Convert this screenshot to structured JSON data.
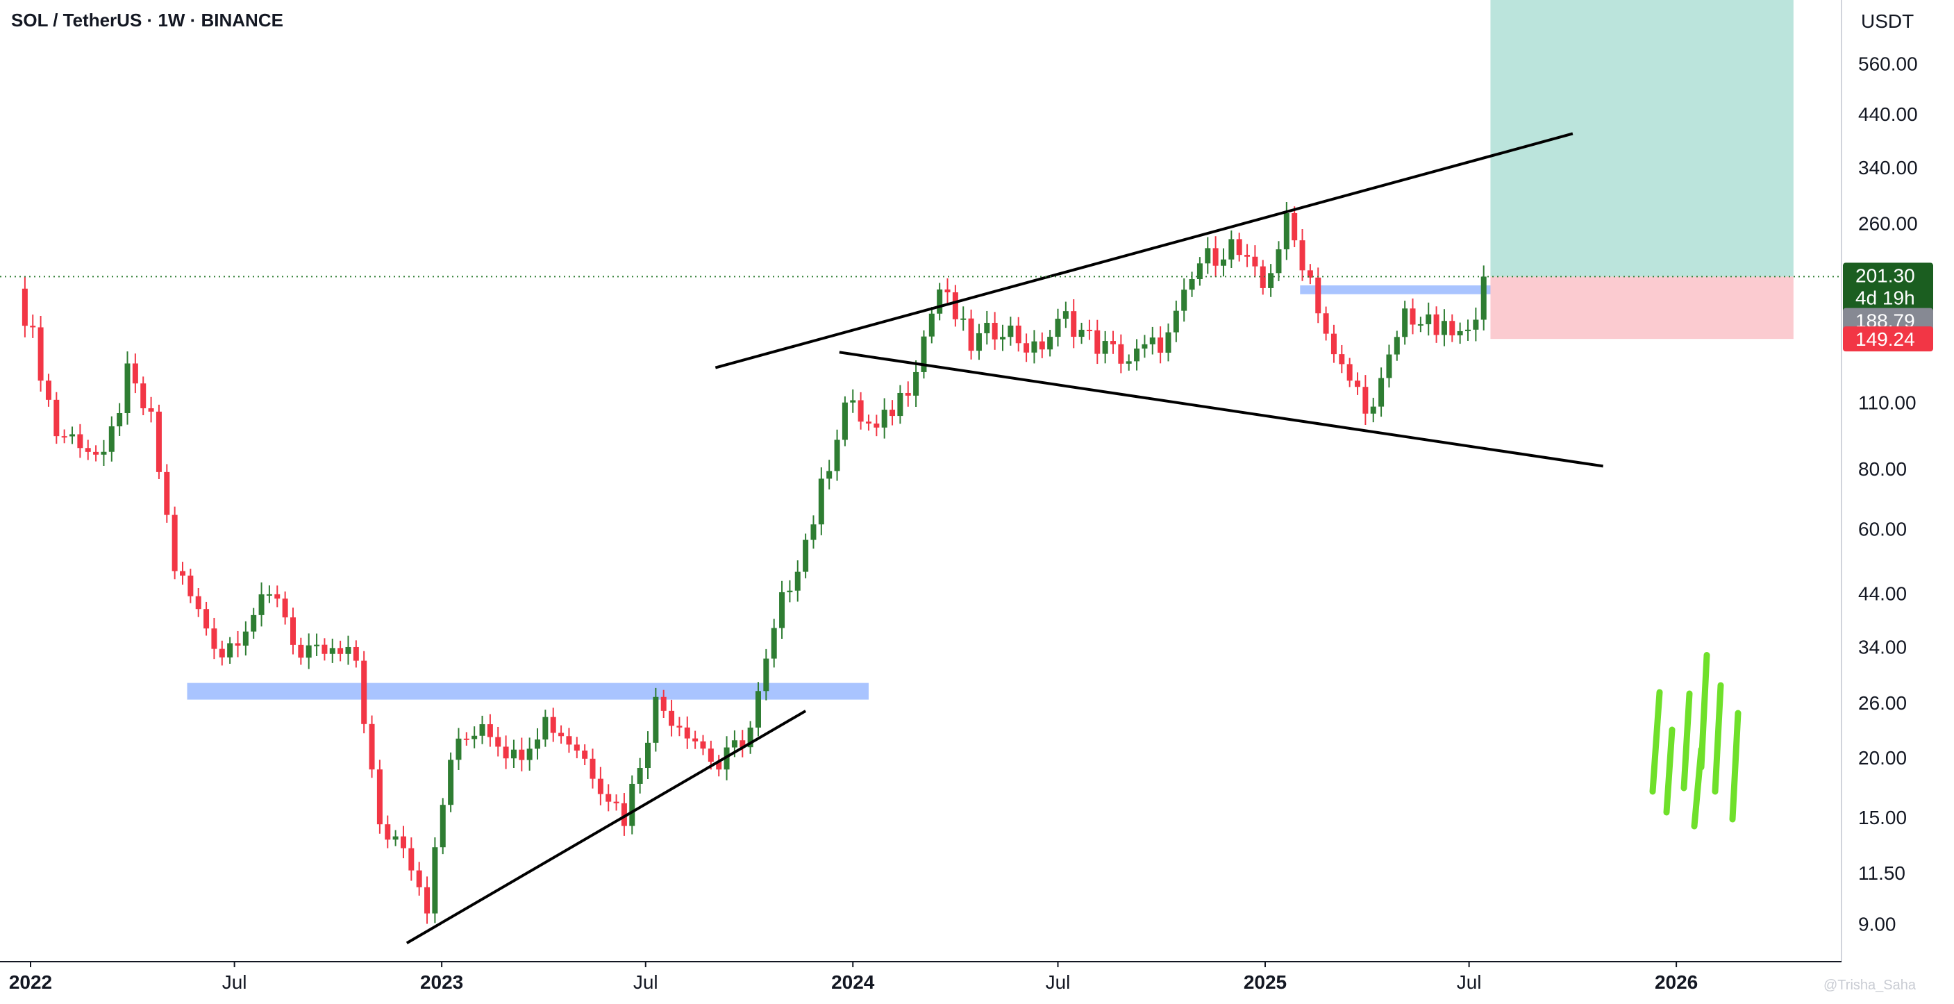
{
  "title": "SOL / TetherUS · 1W · BINANCE",
  "currency_label": "USDT",
  "watermark": "@Trisha_Saha",
  "colors": {
    "up": "#2e7d32",
    "down": "#f23645",
    "zone": "#a9c4ff",
    "target": "#b7e3da",
    "stop": "#fbcbd0",
    "price_badge": "#1b5e20",
    "prev_badge": "#868993",
    "stop_badge": "#f23645"
  },
  "chart_data": {
    "type": "candlestick",
    "scale": "log",
    "ylim": [
      7.5,
      760
    ],
    "y_ticks": [
      560,
      440,
      340,
      260,
      201.3,
      188.79,
      149.24,
      110,
      80,
      60,
      44,
      34,
      26,
      20,
      15,
      11.5,
      9
    ],
    "y_tick_labels": [
      "560.00",
      "440.00",
      "340.00",
      "260.00",
      "",
      "",
      "",
      "110.00",
      "80.00",
      "60.00",
      "44.00",
      "34.00",
      "26.00",
      "20.00",
      "15.00",
      "11.50",
      "9.00"
    ],
    "x_ticks": [
      {
        "label": "2022",
        "date": "2022-01-01",
        "bold": true
      },
      {
        "label": "Jul",
        "date": "2022-07-01",
        "bold": false
      },
      {
        "label": "2023",
        "date": "2023-01-01",
        "bold": true
      },
      {
        "label": "Jul",
        "date": "2023-07-01",
        "bold": false
      },
      {
        "label": "2024",
        "date": "2024-01-01",
        "bold": true
      },
      {
        "label": "Jul",
        "date": "2024-07-01",
        "bold": false
      },
      {
        "label": "2025",
        "date": "2025-01-01",
        "bold": true
      },
      {
        "label": "Jul",
        "date": "2025-07-01",
        "bold": false
      },
      {
        "label": "2026",
        "date": "2026-01-01",
        "bold": true
      }
    ],
    "series": [
      {
        "name": "SOL/USDT weekly close",
        "points": [
          [
            "2021-12-20",
            190
          ],
          [
            "2022-01-03",
            150
          ],
          [
            "2022-01-24",
            95
          ],
          [
            "2022-02-14",
            92
          ],
          [
            "2022-03-07",
            82
          ],
          [
            "2022-03-28",
            125
          ],
          [
            "2022-04-18",
            100
          ],
          [
            "2022-05-09",
            50
          ],
          [
            "2022-05-30",
            40
          ],
          [
            "2022-06-20",
            33
          ],
          [
            "2022-07-18",
            40
          ],
          [
            "2022-08-08",
            44
          ],
          [
            "2022-08-29",
            32
          ],
          [
            "2022-09-19",
            33
          ],
          [
            "2022-10-17",
            32
          ],
          [
            "2022-11-07",
            14
          ],
          [
            "2022-11-28",
            13.5
          ],
          [
            "2022-12-19",
            9.9
          ],
          [
            "2023-01-09",
            20
          ],
          [
            "2023-02-06",
            24
          ],
          [
            "2023-03-06",
            20
          ],
          [
            "2023-04-03",
            24
          ],
          [
            "2023-05-01",
            21
          ],
          [
            "2023-06-12",
            15
          ],
          [
            "2023-07-10",
            26
          ],
          [
            "2023-08-07",
            23
          ],
          [
            "2023-09-04",
            19
          ],
          [
            "2023-10-02",
            23
          ],
          [
            "2023-10-30",
            42
          ],
          [
            "2023-11-27",
            63
          ],
          [
            "2023-12-25",
            110
          ],
          [
            "2024-01-22",
            95
          ],
          [
            "2024-02-19",
            120
          ],
          [
            "2024-03-18",
            190
          ],
          [
            "2024-04-15",
            145
          ],
          [
            "2024-05-13",
            160
          ],
          [
            "2024-06-10",
            140
          ],
          [
            "2024-07-08",
            165
          ],
          [
            "2024-08-05",
            145
          ],
          [
            "2024-09-02",
            135
          ],
          [
            "2024-10-07",
            150
          ],
          [
            "2024-11-04",
            215
          ],
          [
            "2024-12-02",
            235
          ],
          [
            "2024-12-30",
            190
          ],
          [
            "2025-01-20",
            260
          ],
          [
            "2025-02-10",
            200
          ],
          [
            "2025-03-03",
            135
          ],
          [
            "2025-04-07",
            105
          ],
          [
            "2025-05-05",
            170
          ],
          [
            "2025-06-02",
            155
          ],
          [
            "2025-06-30",
            150
          ],
          [
            "2025-07-14",
            201.3
          ]
        ]
      }
    ],
    "zones": [
      {
        "from": "2022-05-20",
        "to": "2024-01-15",
        "low": 26.4,
        "high": 28.6
      },
      {
        "from": "2025-02-01",
        "to": "2025-09-20",
        "low": 185,
        "high": 193
      }
    ],
    "trendlines": [
      {
        "from": [
          "2023-09-01",
          130
        ],
        "to": [
          "2025-10-01",
          400
        ]
      },
      {
        "from": [
          "2023-12-20",
          140
        ],
        "to": [
          "2025-10-28",
          81
        ]
      },
      {
        "from": [
          "2022-12-01",
          8.2
        ],
        "to": [
          "2023-11-20",
          25
        ]
      }
    ],
    "position": {
      "from": "2025-07-20",
      "to": "2026-04-15",
      "entry": 201.3,
      "target": 720,
      "stop": 149.24
    },
    "current_price": "201.30",
    "countdown": "4d 19h",
    "prev_close": "188.79",
    "stop_label": "149.24"
  }
}
